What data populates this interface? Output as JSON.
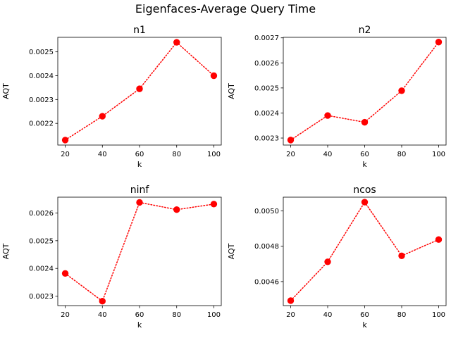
{
  "suptitle": "Eigenfaces-Average Query Time",
  "colors": {
    "series": "#ff0000",
    "axes": "#000000",
    "background": "#ffffff"
  },
  "chart_data": [
    {
      "type": "line",
      "title": "n1",
      "xlabel": "k",
      "ylabel": "AQT",
      "x": [
        20,
        40,
        60,
        80,
        100
      ],
      "y": [
        0.00213,
        0.00223,
        0.002345,
        0.00254,
        0.0024
      ],
      "xlim": [
        16,
        104
      ],
      "ylim": [
        0.002109,
        0.002561
      ],
      "xticks": [
        20,
        40,
        60,
        80,
        100
      ],
      "yticks": [
        0.0022,
        0.0023,
        0.0024,
        0.0025
      ],
      "ytick_labels": [
        "0.0022",
        "0.0023",
        "0.0024",
        "0.0025"
      ],
      "marker": "circle",
      "linestyle": "dotted",
      "grid": false
    },
    {
      "type": "line",
      "title": "n2",
      "xlabel": "k",
      "ylabel": "AQT",
      "x": [
        20,
        40,
        60,
        80,
        100
      ],
      "y": [
        0.002292,
        0.00239,
        0.002363,
        0.002489,
        0.002683
      ],
      "xlim": [
        16,
        104
      ],
      "ylim": [
        0.002272,
        0.002702
      ],
      "xticks": [
        20,
        40,
        60,
        80,
        100
      ],
      "yticks": [
        0.0023,
        0.0024,
        0.0025,
        0.0026,
        0.0027
      ],
      "ytick_labels": [
        "0.0023",
        "0.0024",
        "0.0025",
        "0.0026",
        "0.0027"
      ],
      "marker": "circle",
      "linestyle": "dotted",
      "grid": false
    },
    {
      "type": "line",
      "title": "ninf",
      "xlabel": "k",
      "ylabel": "AQT",
      "x": [
        20,
        40,
        60,
        80,
        100
      ],
      "y": [
        0.002382,
        0.002282,
        0.002638,
        0.002612,
        0.002632
      ],
      "xlim": [
        16,
        104
      ],
      "ylim": [
        0.002266,
        0.002657
      ],
      "xticks": [
        20,
        40,
        60,
        80,
        100
      ],
      "yticks": [
        0.0023,
        0.0024,
        0.0025,
        0.0026
      ],
      "ytick_labels": [
        "0.0023",
        "0.0024",
        "0.0025",
        "0.0026"
      ],
      "marker": "circle",
      "linestyle": "dotted",
      "grid": false
    },
    {
      "type": "line",
      "title": "ncos",
      "xlabel": "k",
      "ylabel": "AQT",
      "x": [
        20,
        40,
        60,
        80,
        100
      ],
      "y": [
        0.004492,
        0.004712,
        0.00505,
        0.004746,
        0.004838
      ],
      "xlim": [
        16,
        104
      ],
      "ylim": [
        0.004464,
        0.005078
      ],
      "xticks": [
        20,
        40,
        60,
        80,
        100
      ],
      "yticks": [
        0.0046,
        0.0048,
        0.005
      ],
      "ytick_labels": [
        "0.0046",
        "0.0048",
        "0.0050"
      ],
      "marker": "circle",
      "linestyle": "dotted",
      "grid": false
    }
  ]
}
